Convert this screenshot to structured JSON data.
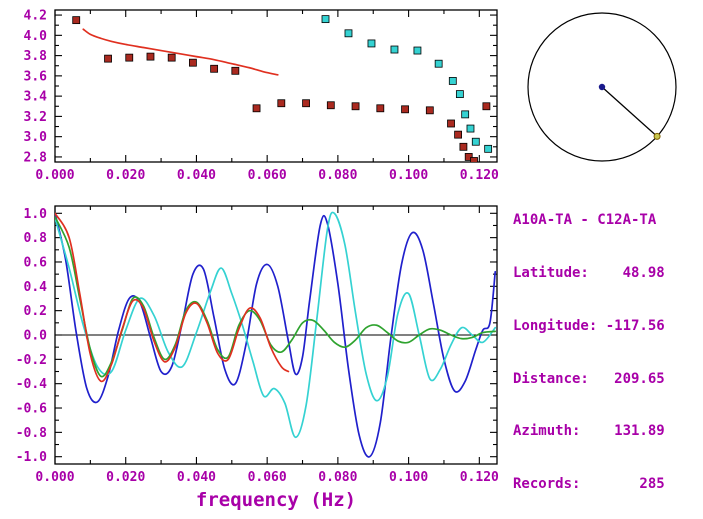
{
  "colors": {
    "text": "#A800A8",
    "axis": "#000000",
    "bg": "#FFFFFF",
    "red": "#E03020",
    "dark_red": "#AA2A20",
    "cyan": "#35D2D2",
    "blue": "#2020CC",
    "green": "#2FA32F",
    "map_dot": "#1A1A8C",
    "map_marker": "#C8C850",
    "map_marker_edge": "#806000"
  },
  "station_info": {
    "pair": "A10A-TA - C12A-TA",
    "rows": [
      "Latitude:    48.98",
      "Longitude: -117.56",
      "Distance:   209.65",
      "Azimuth:    131.89",
      "Records:       285"
    ]
  },
  "azimuth_plot": {
    "azimuth_deg": 131.89
  },
  "chart_data": [
    {
      "id": "dispersion",
      "type": "scatter",
      "title": "",
      "xlabel": "",
      "ylabel": "",
      "xlim": [
        0,
        0.125
      ],
      "ylim": [
        2.75,
        4.25
      ],
      "grid": false,
      "xticks": {
        "values": [
          0,
          0.02,
          0.04,
          0.06,
          0.08,
          0.1,
          0.12
        ],
        "labels": [
          "0.000",
          "0.020",
          "0.040",
          "0.060",
          "0.080",
          "0.100",
          "0.120"
        ],
        "minor": [
          0.01,
          0.03,
          0.05,
          0.07,
          0.09,
          0.11
        ]
      },
      "yticks": {
        "values": [
          2.8,
          3.0,
          3.2,
          3.4,
          3.6,
          3.8,
          4.0,
          4.2
        ],
        "labels": [
          "2.8",
          "3.0",
          "3.2",
          "3.4",
          "3.6",
          "3.8",
          "4.0",
          "4.2"
        ],
        "minor": [
          2.9,
          3.1,
          3.3,
          3.5,
          3.7,
          3.9,
          4.1
        ]
      },
      "series": [
        {
          "name": "reference-velocity-curve",
          "type": "line",
          "color_key": "red",
          "points": [
            [
              0.008,
              4.06
            ],
            [
              0.01,
              4.01
            ],
            [
              0.013,
              3.97
            ],
            [
              0.016,
              3.94
            ],
            [
              0.02,
              3.91
            ],
            [
              0.025,
              3.88
            ],
            [
              0.03,
              3.85
            ],
            [
              0.035,
              3.82
            ],
            [
              0.04,
              3.79
            ],
            [
              0.045,
              3.76
            ],
            [
              0.05,
              3.72
            ],
            [
              0.055,
              3.68
            ],
            [
              0.059,
              3.64
            ],
            [
              0.063,
              3.61
            ]
          ]
        },
        {
          "name": "group-velocity-picks",
          "type": "scatter",
          "color_key": "dark_red",
          "points": [
            [
              0.006,
              4.15
            ],
            [
              0.015,
              3.77
            ],
            [
              0.021,
              3.78
            ],
            [
              0.027,
              3.79
            ],
            [
              0.033,
              3.78
            ],
            [
              0.039,
              3.73
            ],
            [
              0.045,
              3.67
            ],
            [
              0.051,
              3.65
            ],
            [
              0.057,
              3.28
            ],
            [
              0.064,
              3.33
            ],
            [
              0.071,
              3.33
            ],
            [
              0.078,
              3.31
            ],
            [
              0.085,
              3.3
            ],
            [
              0.092,
              3.28
            ],
            [
              0.099,
              3.27
            ],
            [
              0.106,
              3.26
            ],
            [
              0.112,
              3.13
            ],
            [
              0.114,
              3.02
            ],
            [
              0.1155,
              2.9
            ],
            [
              0.117,
              2.8
            ],
            [
              0.1185,
              2.76
            ],
            [
              0.122,
              3.3
            ]
          ]
        },
        {
          "name": "phase-velocity-picks",
          "type": "scatter",
          "color_key": "cyan",
          "points": [
            [
              0.0765,
              4.16
            ],
            [
              0.083,
              4.02
            ],
            [
              0.0895,
              3.92
            ],
            [
              0.096,
              3.86
            ],
            [
              0.1025,
              3.85
            ],
            [
              0.1085,
              3.72
            ],
            [
              0.1125,
              3.55
            ],
            [
              0.1145,
              3.42
            ],
            [
              0.116,
              3.22
            ],
            [
              0.1175,
              3.08
            ],
            [
              0.119,
              2.95
            ],
            [
              0.1225,
              2.88
            ]
          ]
        }
      ]
    },
    {
      "id": "spectra",
      "type": "line",
      "title": "",
      "xlabel": "frequency (Hz)",
      "ylabel": "",
      "xlim": [
        0,
        0.125
      ],
      "ylim": [
        -1.06,
        1.06
      ],
      "grid": false,
      "zero_line": true,
      "xticks": {
        "values": [
          0,
          0.02,
          0.04,
          0.06,
          0.08,
          0.1,
          0.12
        ],
        "labels": [
          "0.000",
          "0.020",
          "0.040",
          "0.060",
          "0.080",
          "0.100",
          "0.120"
        ],
        "minor": [
          0.01,
          0.03,
          0.05,
          0.07,
          0.09,
          0.11
        ]
      },
      "yticks": {
        "values": [
          -1.0,
          -0.8,
          -0.6,
          -0.4,
          -0.2,
          0.0,
          0.2,
          0.4,
          0.6,
          0.8,
          1.0
        ],
        "labels": [
          "-1.0",
          "-0.8",
          "-0.6",
          "-0.4",
          "-0.2",
          "0.0",
          "0.2",
          "0.4",
          "0.6",
          "0.8",
          "1.0"
        ],
        "minor": [
          -0.9,
          -0.7,
          -0.5,
          -0.3,
          -0.1,
          0.1,
          0.3,
          0.5,
          0.7,
          0.9
        ]
      },
      "series": [
        {
          "name": "trace-blue",
          "type": "line",
          "color_key": "blue",
          "points": [
            [
              0,
              1.0
            ],
            [
              0.003,
              0.62
            ],
            [
              0.006,
              0.02
            ],
            [
              0.009,
              -0.44
            ],
            [
              0.012,
              -0.55
            ],
            [
              0.015,
              -0.34
            ],
            [
              0.018,
              0.04
            ],
            [
              0.021,
              0.3
            ],
            [
              0.024,
              0.27
            ],
            [
              0.027,
              -0.02
            ],
            [
              0.03,
              -0.3
            ],
            [
              0.033,
              -0.26
            ],
            [
              0.036,
              0.1
            ],
            [
              0.039,
              0.5
            ],
            [
              0.042,
              0.54
            ],
            [
              0.045,
              0.14
            ],
            [
              0.048,
              -0.28
            ],
            [
              0.051,
              -0.4
            ],
            [
              0.054,
              -0.08
            ],
            [
              0.057,
              0.42
            ],
            [
              0.06,
              0.58
            ],
            [
              0.063,
              0.4
            ],
            [
              0.066,
              -0.05
            ],
            [
              0.068,
              -0.32
            ],
            [
              0.07,
              -0.18
            ],
            [
              0.072,
              0.28
            ],
            [
              0.075,
              0.9
            ],
            [
              0.077,
              0.92
            ],
            [
              0.08,
              0.42
            ],
            [
              0.083,
              -0.28
            ],
            [
              0.086,
              -0.82
            ],
            [
              0.089,
              -1.0
            ],
            [
              0.092,
              -0.72
            ],
            [
              0.095,
              -0.02
            ],
            [
              0.098,
              0.58
            ],
            [
              0.101,
              0.84
            ],
            [
              0.104,
              0.7
            ],
            [
              0.107,
              0.26
            ],
            [
              0.11,
              -0.2
            ],
            [
              0.113,
              -0.46
            ],
            [
              0.116,
              -0.38
            ],
            [
              0.119,
              -0.12
            ],
            [
              0.121,
              0.04
            ],
            [
              0.123,
              0.1
            ],
            [
              0.1245,
              0.52
            ]
          ]
        },
        {
          "name": "trace-cyan",
          "type": "line",
          "color_key": "cyan",
          "points": [
            [
              0,
              0.96
            ],
            [
              0.004,
              0.55
            ],
            [
              0.008,
              0.08
            ],
            [
              0.012,
              -0.26
            ],
            [
              0.016,
              -0.3
            ],
            [
              0.02,
              0.04
            ],
            [
              0.024,
              0.3
            ],
            [
              0.028,
              0.16
            ],
            [
              0.032,
              -0.14
            ],
            [
              0.036,
              -0.26
            ],
            [
              0.04,
              0.02
            ],
            [
              0.044,
              0.36
            ],
            [
              0.047,
              0.55
            ],
            [
              0.05,
              0.34
            ],
            [
              0.053,
              0.08
            ],
            [
              0.056,
              -0.22
            ],
            [
              0.059,
              -0.5
            ],
            [
              0.062,
              -0.44
            ],
            [
              0.065,
              -0.56
            ],
            [
              0.068,
              -0.84
            ],
            [
              0.071,
              -0.58
            ],
            [
              0.074,
              0.12
            ],
            [
              0.077,
              0.86
            ],
            [
              0.079,
              1.0
            ],
            [
              0.082,
              0.74
            ],
            [
              0.085,
              0.18
            ],
            [
              0.088,
              -0.32
            ],
            [
              0.091,
              -0.54
            ],
            [
              0.094,
              -0.34
            ],
            [
              0.097,
              0.18
            ],
            [
              0.1,
              0.34
            ],
            [
              0.103,
              0.0
            ],
            [
              0.106,
              -0.36
            ],
            [
              0.109,
              -0.28
            ],
            [
              0.112,
              -0.08
            ],
            [
              0.115,
              0.06
            ],
            [
              0.118,
              0.0
            ],
            [
              0.121,
              -0.06
            ],
            [
              0.1245,
              0.06
            ]
          ]
        },
        {
          "name": "trace-green",
          "type": "line",
          "color_key": "green",
          "points": [
            [
              0,
              0.97
            ],
            [
              0.004,
              0.72
            ],
            [
              0.007,
              0.3
            ],
            [
              0.01,
              -0.12
            ],
            [
              0.013,
              -0.34
            ],
            [
              0.016,
              -0.22
            ],
            [
              0.019,
              0.04
            ],
            [
              0.022,
              0.3
            ],
            [
              0.025,
              0.24
            ],
            [
              0.028,
              -0.02
            ],
            [
              0.031,
              -0.2
            ],
            [
              0.034,
              -0.08
            ],
            [
              0.037,
              0.2
            ],
            [
              0.04,
              0.27
            ],
            [
              0.043,
              0.12
            ],
            [
              0.046,
              -0.12
            ],
            [
              0.049,
              -0.18
            ],
            [
              0.052,
              0.08
            ],
            [
              0.055,
              0.2
            ],
            [
              0.058,
              0.12
            ],
            [
              0.061,
              -0.08
            ],
            [
              0.064,
              -0.14
            ],
            [
              0.067,
              -0.04
            ],
            [
              0.07,
              0.1
            ],
            [
              0.073,
              0.12
            ],
            [
              0.076,
              0.04
            ],
            [
              0.079,
              -0.06
            ],
            [
              0.082,
              -0.1
            ],
            [
              0.085,
              -0.04
            ],
            [
              0.088,
              0.06
            ],
            [
              0.091,
              0.08
            ],
            [
              0.094,
              0.02
            ],
            [
              0.097,
              -0.05
            ],
            [
              0.1,
              -0.06
            ],
            [
              0.103,
              0.0
            ],
            [
              0.106,
              0.05
            ],
            [
              0.109,
              0.04
            ],
            [
              0.112,
              0.0
            ],
            [
              0.115,
              -0.03
            ],
            [
              0.118,
              -0.02
            ],
            [
              0.121,
              0.02
            ],
            [
              0.1245,
              0.03
            ]
          ]
        },
        {
          "name": "trace-red",
          "type": "line",
          "color_key": "red",
          "points": [
            [
              0,
              1.0
            ],
            [
              0.004,
              0.8
            ],
            [
              0.007,
              0.34
            ],
            [
              0.01,
              -0.16
            ],
            [
              0.013,
              -0.38
            ],
            [
              0.016,
              -0.24
            ],
            [
              0.019,
              0.05
            ],
            [
              0.022,
              0.28
            ],
            [
              0.025,
              0.22
            ],
            [
              0.028,
              -0.05
            ],
            [
              0.031,
              -0.22
            ],
            [
              0.034,
              -0.1
            ],
            [
              0.037,
              0.18
            ],
            [
              0.04,
              0.26
            ],
            [
              0.043,
              0.1
            ],
            [
              0.046,
              -0.15
            ],
            [
              0.049,
              -0.2
            ],
            [
              0.052,
              0.05
            ],
            [
              0.055,
              0.22
            ],
            [
              0.058,
              0.14
            ],
            [
              0.061,
              -0.1
            ],
            [
              0.064,
              -0.26
            ],
            [
              0.066,
              -0.3
            ]
          ]
        }
      ]
    }
  ]
}
